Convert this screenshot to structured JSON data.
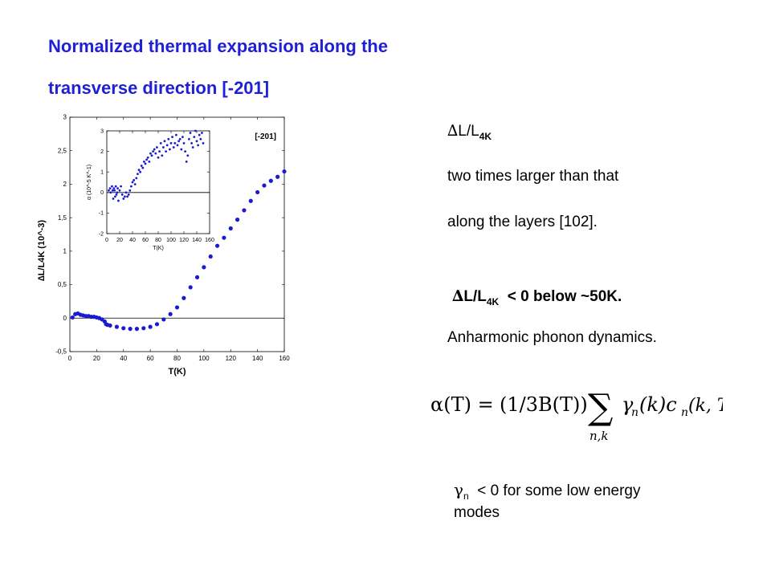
{
  "title": {
    "line1": "Normalized thermal expansion along the",
    "line2": "transverse direction  [-201]"
  },
  "notes": {
    "delta_symbol": "∆",
    "ratio_main": "L/L",
    "ratio_sub": "4K",
    "compare_line1": "two times larger than that",
    "compare_line2": "along  the layers  [102].",
    "negative_suffix": "< 0  below ~50K.",
    "anharmonic": "Anharmonic phonon dynamics.",
    "gamma_symbol": "γ",
    "gamma_sub": "n",
    "gamma_text": "< 0 for some low energy",
    "gamma_text2": "modes"
  },
  "formula": {
    "lhs": "α(T) = ",
    "factor": "(1/3B(T))",
    "sum_symbol": "∑",
    "sum_index": "n,k",
    "summand": "γ",
    "summand_sub": "n",
    "summand_rest": "(k)c",
    "c_sub": "n",
    "args": "(k, T)"
  },
  "chart_data": [
    {
      "type": "scatter",
      "panel": "main",
      "title": "[-201]",
      "xlabel": "T(K)",
      "ylabel": "∆L/L4K (10^-3)",
      "xlim": [
        0,
        160
      ],
      "ylim": [
        -0.5,
        3
      ],
      "xticks": [
        "0",
        "20",
        "40",
        "60",
        "80",
        "100",
        "120",
        "140",
        "160"
      ],
      "yticks": [
        "-0,5",
        "0",
        "0,5",
        "1",
        "1,5",
        "2",
        "2,5",
        "3"
      ],
      "zero_line": true,
      "points": [
        [
          2,
          0.01
        ],
        [
          4,
          0.06
        ],
        [
          6,
          0.07
        ],
        [
          8,
          0.05
        ],
        [
          10,
          0.04
        ],
        [
          12,
          0.03
        ],
        [
          14,
          0.03
        ],
        [
          16,
          0.02
        ],
        [
          18,
          0.02
        ],
        [
          20,
          0.01
        ],
        [
          22,
          0.0
        ],
        [
          24,
          -0.02
        ],
        [
          26,
          -0.05
        ],
        [
          27,
          -0.09
        ],
        [
          28,
          -0.1
        ],
        [
          30,
          -0.11
        ],
        [
          35,
          -0.13
        ],
        [
          40,
          -0.15
        ],
        [
          45,
          -0.16
        ],
        [
          50,
          -0.16
        ],
        [
          55,
          -0.15
        ],
        [
          60,
          -0.13
        ],
        [
          65,
          -0.09
        ],
        [
          70,
          -0.02
        ],
        [
          75,
          0.06
        ],
        [
          80,
          0.16
        ],
        [
          85,
          0.3
        ],
        [
          90,
          0.46
        ],
        [
          95,
          0.61
        ],
        [
          100,
          0.76
        ],
        [
          105,
          0.92
        ],
        [
          110,
          1.08
        ],
        [
          115,
          1.2
        ],
        [
          120,
          1.34
        ],
        [
          125,
          1.47
        ],
        [
          130,
          1.61
        ],
        [
          135,
          1.75
        ],
        [
          140,
          1.88
        ],
        [
          145,
          1.98
        ],
        [
          150,
          2.05
        ],
        [
          155,
          2.11
        ],
        [
          160,
          2.19
        ]
      ],
      "color": "#1a1ad0"
    },
    {
      "type": "scatter",
      "panel": "inset",
      "xlabel": "T(K)",
      "ylabel": "α (10^-5 K^-1)",
      "xlim": [
        0,
        160
      ],
      "ylim": [
        -2,
        3
      ],
      "xticks": [
        "0",
        "20",
        "40",
        "60",
        "80",
        "100",
        "120",
        "140",
        "160"
      ],
      "yticks": [
        "-2",
        "-1",
        "0",
        "1",
        "2",
        "3"
      ],
      "zero_line": true,
      "points": [
        [
          3,
          0.1
        ],
        [
          5,
          0.2
        ],
        [
          6,
          0.0
        ],
        [
          8,
          0.3
        ],
        [
          9,
          0.1
        ],
        [
          10,
          -0.3
        ],
        [
          11,
          0.2
        ],
        [
          12,
          0.1
        ],
        [
          13,
          -0.2
        ],
        [
          14,
          0.3
        ],
        [
          15,
          -0.1
        ],
        [
          16,
          0.0
        ],
        [
          17,
          0.2
        ],
        [
          18,
          -0.4
        ],
        [
          20,
          0.1
        ],
        [
          22,
          0.3
        ],
        [
          24,
          -0.1
        ],
        [
          26,
          -0.3
        ],
        [
          28,
          -0.2
        ],
        [
          30,
          0.0
        ],
        [
          32,
          -0.2
        ],
        [
          34,
          -0.1
        ],
        [
          36,
          0.1
        ],
        [
          38,
          0.3
        ],
        [
          40,
          0.5
        ],
        [
          42,
          0.6
        ],
        [
          44,
          0.4
        ],
        [
          46,
          0.7
        ],
        [
          48,
          0.9
        ],
        [
          50,
          1.1
        ],
        [
          52,
          1.0
        ],
        [
          54,
          1.3
        ],
        [
          56,
          1.2
        ],
        [
          58,
          1.5
        ],
        [
          60,
          1.4
        ],
        [
          62,
          1.6
        ],
        [
          64,
          1.7
        ],
        [
          66,
          1.5
        ],
        [
          68,
          1.9
        ],
        [
          70,
          1.8
        ],
        [
          72,
          2.0
        ],
        [
          74,
          2.1
        ],
        [
          76,
          1.9
        ],
        [
          78,
          2.2
        ],
        [
          80,
          1.7
        ],
        [
          82,
          2.0
        ],
        [
          84,
          2.4
        ],
        [
          86,
          1.8
        ],
        [
          88,
          2.2
        ],
        [
          90,
          2.5
        ],
        [
          92,
          2.0
        ],
        [
          94,
          2.3
        ],
        [
          96,
          2.6
        ],
        [
          98,
          2.1
        ],
        [
          100,
          2.4
        ],
        [
          102,
          2.7
        ],
        [
          104,
          2.2
        ],
        [
          106,
          2.4
        ],
        [
          108,
          2.8
        ],
        [
          110,
          2.3
        ],
        [
          112,
          2.5
        ],
        [
          114,
          2.6
        ],
        [
          116,
          2.1
        ],
        [
          118,
          2.7
        ],
        [
          120,
          2.4
        ],
        [
          122,
          2.0
        ],
        [
          124,
          1.5
        ],
        [
          126,
          1.8
        ],
        [
          128,
          2.6
        ],
        [
          130,
          2.9
        ],
        [
          132,
          2.4
        ],
        [
          134,
          2.2
        ],
        [
          136,
          2.7
        ],
        [
          138,
          3.0
        ],
        [
          140,
          2.5
        ],
        [
          142,
          2.3
        ],
        [
          144,
          2.8
        ],
        [
          146,
          2.6
        ],
        [
          148,
          2.9
        ],
        [
          150,
          2.4
        ]
      ],
      "color": "#1a1ad0"
    }
  ]
}
